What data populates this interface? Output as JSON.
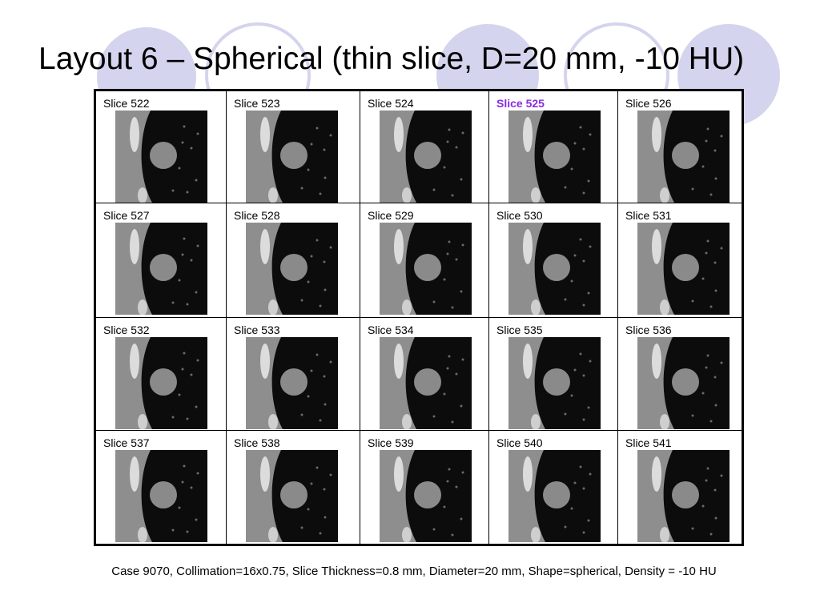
{
  "slide": {
    "title": "Layout 6 – Spherical (thin slice, D=20 mm, -10 HU)",
    "caption": "Case 9070, Collimation=16x0.75, Slice Thickness=0.8 mm, Diameter=20 mm, Shape=spherical, Density = -10 HU"
  },
  "grid": {
    "columns": 5,
    "rows": 4,
    "highlight_color": "#8a2be2",
    "decor_circle_color": "#d4d4ee",
    "cells": [
      {
        "label": "Slice 522",
        "highlighted": false
      },
      {
        "label": "Slice 523",
        "highlighted": false
      },
      {
        "label": "Slice 524",
        "highlighted": false
      },
      {
        "label": "Slice 525",
        "highlighted": true
      },
      {
        "label": "Slice 526",
        "highlighted": false
      },
      {
        "label": "Slice 527",
        "highlighted": false
      },
      {
        "label": "Slice 528",
        "highlighted": false
      },
      {
        "label": "Slice 529",
        "highlighted": false
      },
      {
        "label": "Slice 530",
        "highlighted": false
      },
      {
        "label": "Slice 531",
        "highlighted": false
      },
      {
        "label": "Slice 532",
        "highlighted": false
      },
      {
        "label": "Slice 533",
        "highlighted": false
      },
      {
        "label": "Slice 534",
        "highlighted": false
      },
      {
        "label": "Slice 535",
        "highlighted": false
      },
      {
        "label": "Slice 536",
        "highlighted": false
      },
      {
        "label": "Slice 537",
        "highlighted": false
      },
      {
        "label": "Slice 538",
        "highlighted": false
      },
      {
        "label": "Slice 539",
        "highlighted": false
      },
      {
        "label": "Slice 540",
        "highlighted": false
      },
      {
        "label": "Slice 541",
        "highlighted": false
      }
    ]
  }
}
